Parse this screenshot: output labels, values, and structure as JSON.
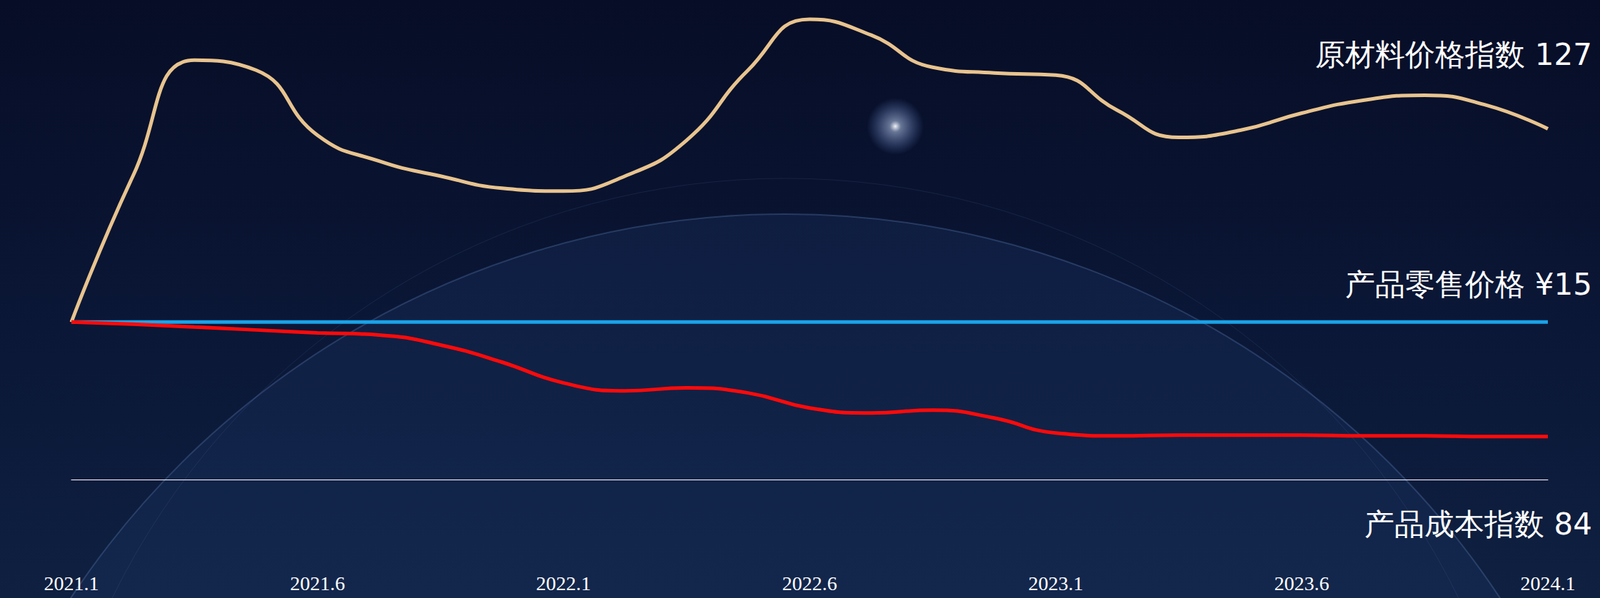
{
  "chart_data": {
    "type": "line",
    "categories": [
      "2021.1",
      null,
      null,
      null,
      "2021.6",
      null,
      null,
      null,
      "2022.1",
      null,
      null,
      null,
      "2022.6",
      null,
      null,
      null,
      "2023.1",
      null,
      null,
      null,
      "2023.6",
      null,
      null,
      null,
      "2024.1"
    ],
    "ylim": [
      78,
      145
    ],
    "y2lim": [
      11.7,
      21.75
    ],
    "grid": false,
    "tick_labels": "x",
    "series": [
      {
        "name": "原材料价格指数 127",
        "color": "#e8c48f",
        "values": [
          100,
          120.4,
          136.6,
          135.2,
          126.1,
          122.5,
          120.4,
          118.7,
          118.3,
          120.4,
          125.4,
          135.2,
          142.3,
          140.1,
          135.6,
          134.8,
          134.5,
          129.6,
          125.8,
          126.8,
          129.2,
          131,
          131.7,
          130.3,
          127
        ]
      },
      {
        "name": "产品零售价格 ¥15",
        "color": "#1aa3e8",
        "axis": "y2",
        "values": [
          15,
          15,
          15,
          15,
          15,
          15,
          15,
          15,
          15,
          15,
          15,
          15,
          15,
          15,
          15,
          15,
          15,
          15,
          15,
          15,
          15,
          15,
          15,
          15,
          15
        ]
      },
      {
        "name": "产品成本指数 84",
        "color": "#ff0a0a",
        "values": [
          100,
          99.7,
          99.3,
          98.9,
          98.5,
          98.2,
          96.8,
          94.4,
          91.5,
          90.4,
          90.8,
          90.1,
          88,
          87.3,
          87.7,
          86.6,
          84.5,
          84.1,
          84.2,
          84.2,
          84.2,
          84.1,
          84.1,
          84,
          84
        ]
      }
    ]
  }
}
